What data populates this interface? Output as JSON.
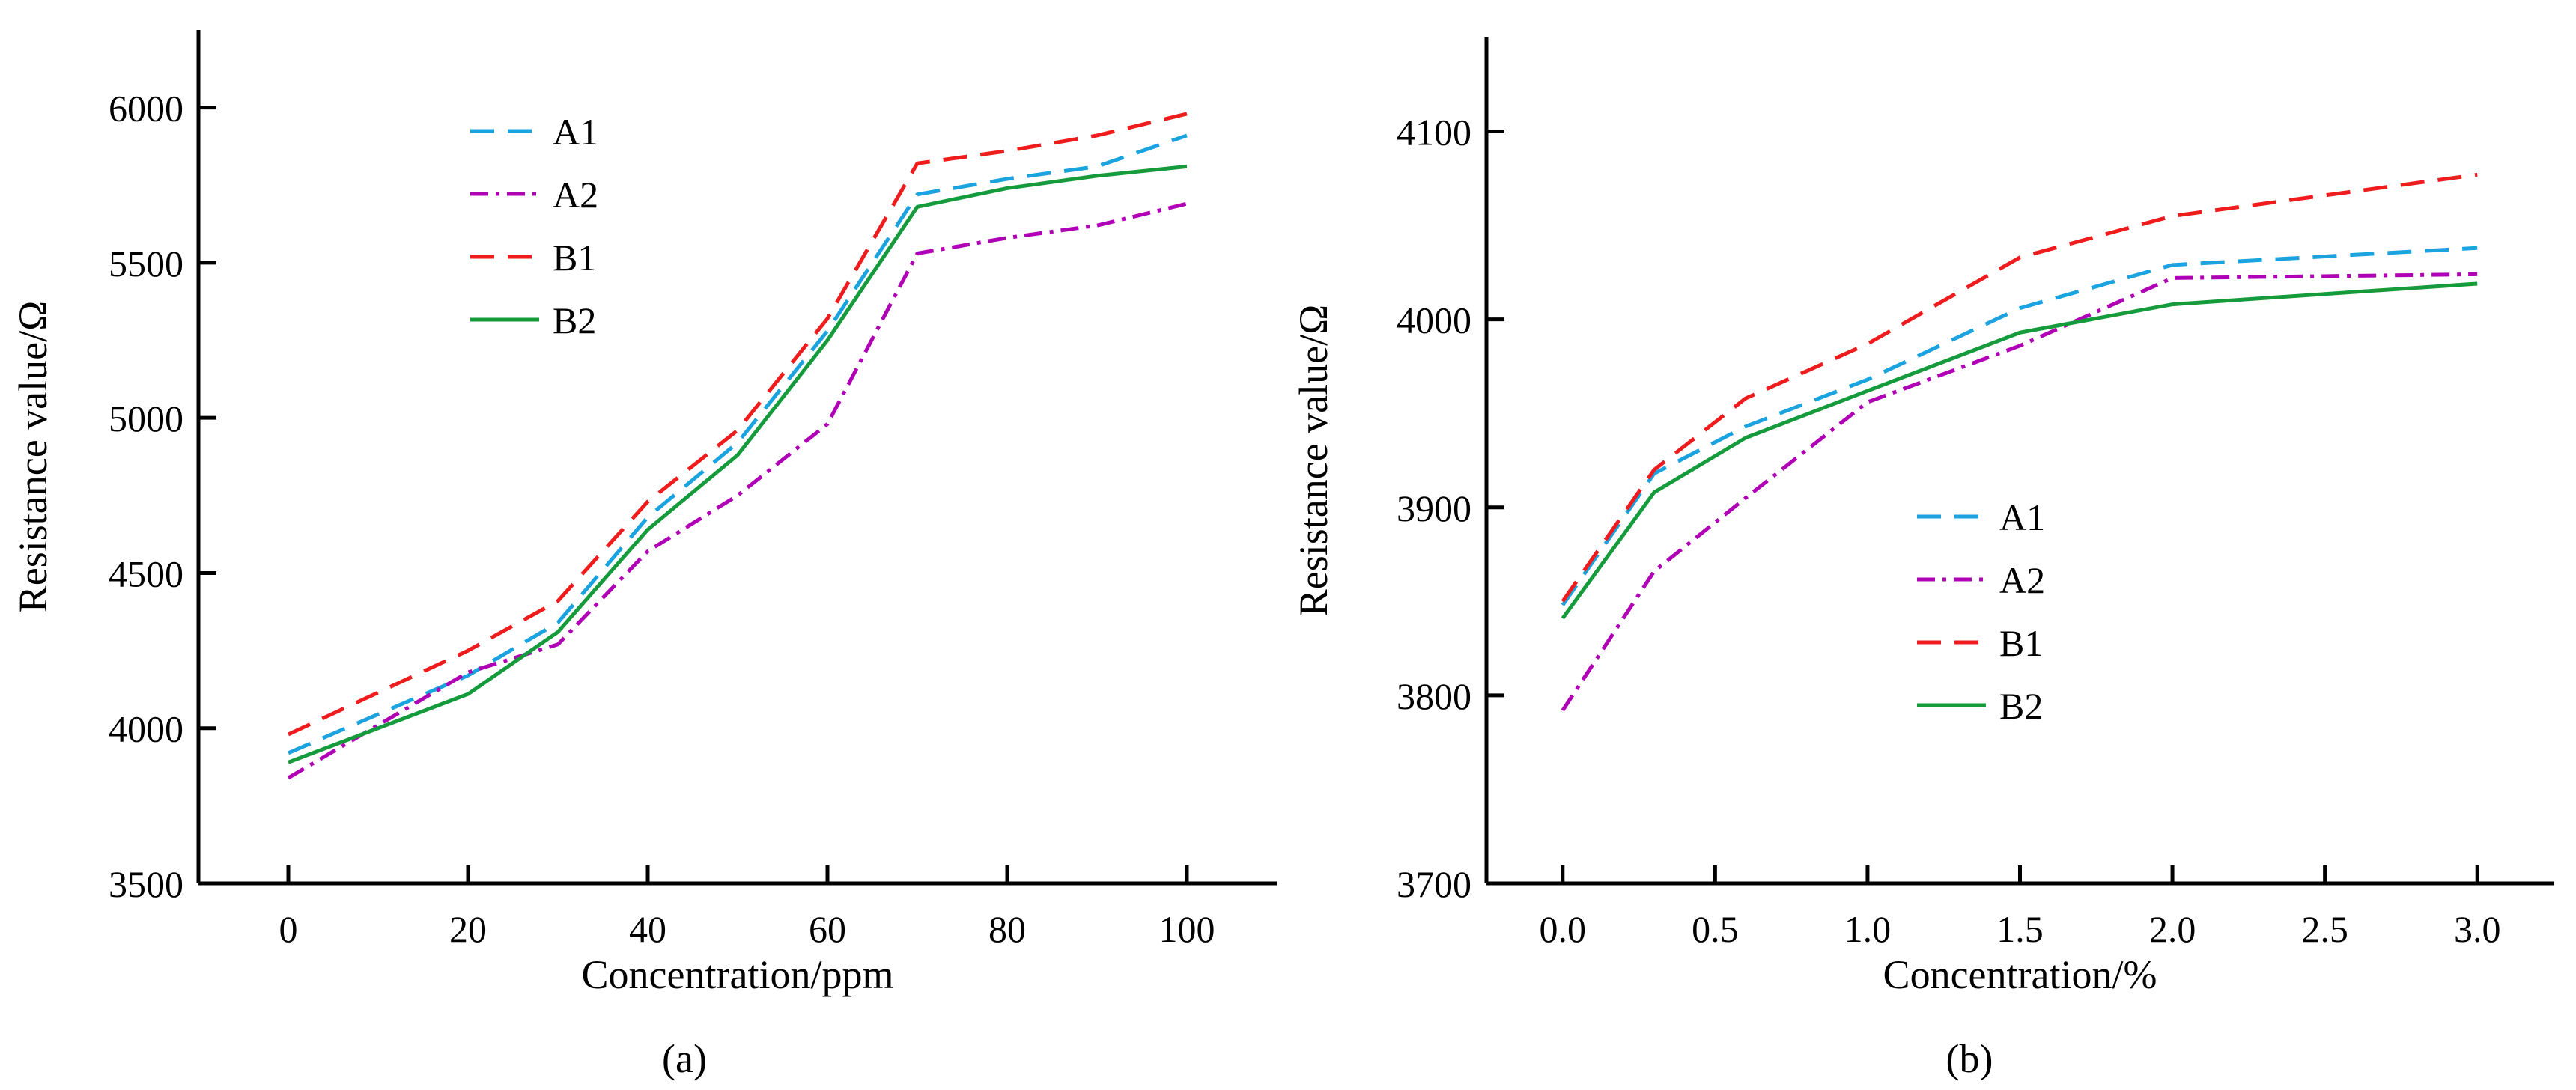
{
  "figure": {
    "panels": [
      {
        "id": "a",
        "caption": "(a)",
        "legend_position": "top-left"
      },
      {
        "id": "b",
        "caption": "(b)",
        "legend_position": "center"
      }
    ]
  },
  "series_styles": {
    "A1": {
      "color": "#1BA3E0",
      "dash": "dashed"
    },
    "A2": {
      "color": "#B000B5",
      "dash": "dash-dot"
    },
    "B1": {
      "color": "#EE1C1C",
      "dash": "dashed"
    },
    "B2": {
      "color": "#159B3C",
      "dash": "solid"
    }
  },
  "chart_data": [
    {
      "type": "line",
      "title": "",
      "xlabel": "Concentration/ppm",
      "ylabel": "Resistance value/Ω",
      "xlim": [
        -10,
        110
      ],
      "ylim": [
        3500,
        6250
      ],
      "xticks": [
        0,
        20,
        40,
        60,
        80,
        100
      ],
      "xtick_labels": [
        "0",
        "20",
        "40",
        "60",
        "80",
        "100"
      ],
      "yticks": [
        3500,
        4000,
        4500,
        5000,
        5500,
        6000
      ],
      "ytick_labels": [
        "3500",
        "4000",
        "4500",
        "5000",
        "5500",
        "6000"
      ],
      "x": [
        0,
        20,
        30,
        40,
        50,
        60,
        70,
        80,
        90,
        100
      ],
      "series": [
        {
          "name": "A1",
          "values": [
            3920,
            4170,
            4340,
            4680,
            4920,
            5280,
            5720,
            5770,
            5810,
            5910
          ]
        },
        {
          "name": "A2",
          "values": [
            3840,
            4180,
            4270,
            4570,
            4750,
            4980,
            5530,
            5580,
            5620,
            5690
          ]
        },
        {
          "name": "B1",
          "values": [
            3980,
            4250,
            4410,
            4730,
            4960,
            5320,
            5820,
            5860,
            5910,
            5980
          ]
        },
        {
          "name": "B2",
          "values": [
            3890,
            4110,
            4310,
            4640,
            4880,
            5250,
            5680,
            5740,
            5780,
            5810
          ]
        }
      ]
    },
    {
      "type": "line",
      "title": "",
      "xlabel": "Concentration/%",
      "ylabel": "Resistance value/Ω",
      "xlim": [
        -0.25,
        3.25
      ],
      "ylim": [
        3700,
        4150
      ],
      "xticks": [
        0,
        0.5,
        1,
        1.5,
        2,
        2.5,
        3
      ],
      "xtick_labels": [
        "0.0",
        "0.5",
        "1.0",
        "1.5",
        "2.0",
        "2.5",
        "3.0"
      ],
      "yticks": [
        3700,
        3800,
        3900,
        4000,
        4100
      ],
      "ytick_labels": [
        "3700",
        "3800",
        "3900",
        "4000",
        "4100"
      ],
      "x": [
        0,
        0.3,
        0.6,
        1.0,
        1.5,
        2.0,
        3.0
      ],
      "series": [
        {
          "name": "A1",
          "values": [
            3848,
            3918,
            3943,
            3968,
            4006,
            4029,
            4038
          ]
        },
        {
          "name": "A2",
          "values": [
            3792,
            3866,
            3905,
            3956,
            3986,
            4022,
            4024
          ]
        },
        {
          "name": "B1",
          "values": [
            3850,
            3920,
            3958,
            3987,
            4033,
            4055,
            4077
          ]
        },
        {
          "name": "B2",
          "values": [
            3841,
            3908,
            3937,
            3962,
            3993,
            4008,
            4019
          ]
        }
      ]
    }
  ]
}
